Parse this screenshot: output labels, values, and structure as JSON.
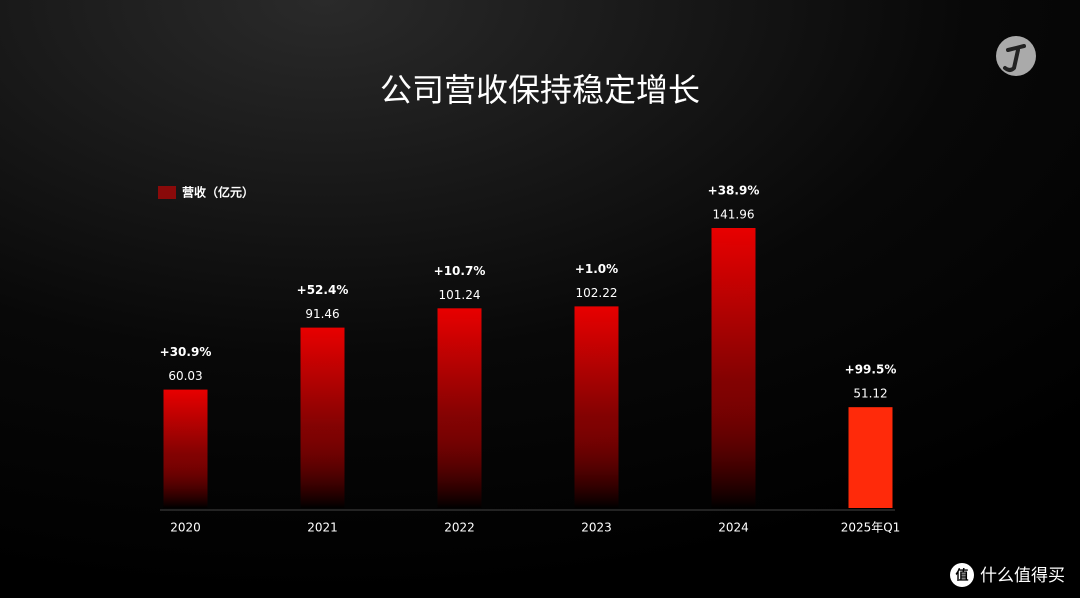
{
  "chart_data": {
    "type": "bar",
    "title": "公司营收保持稳定增长",
    "legend": "营收（亿元）",
    "categories": [
      "2020",
      "2021",
      "2022",
      "2023",
      "2024",
      "2025年Q1"
    ],
    "values": [
      60.03,
      91.46,
      101.24,
      102.22,
      141.96,
      51.12
    ],
    "annotations": [
      "+30.9%",
      "+52.4%",
      "+10.7%",
      "+1.0%",
      "+38.9%",
      "+99.5%"
    ],
    "colors": [
      "#e80000",
      "#e80000",
      "#e80000",
      "#e80000",
      "#e80000",
      "#ff2a0a"
    ],
    "gradient": [
      true,
      true,
      true,
      true,
      true,
      false
    ]
  },
  "watermark": {
    "icon": "值",
    "text": "什么值得买"
  }
}
